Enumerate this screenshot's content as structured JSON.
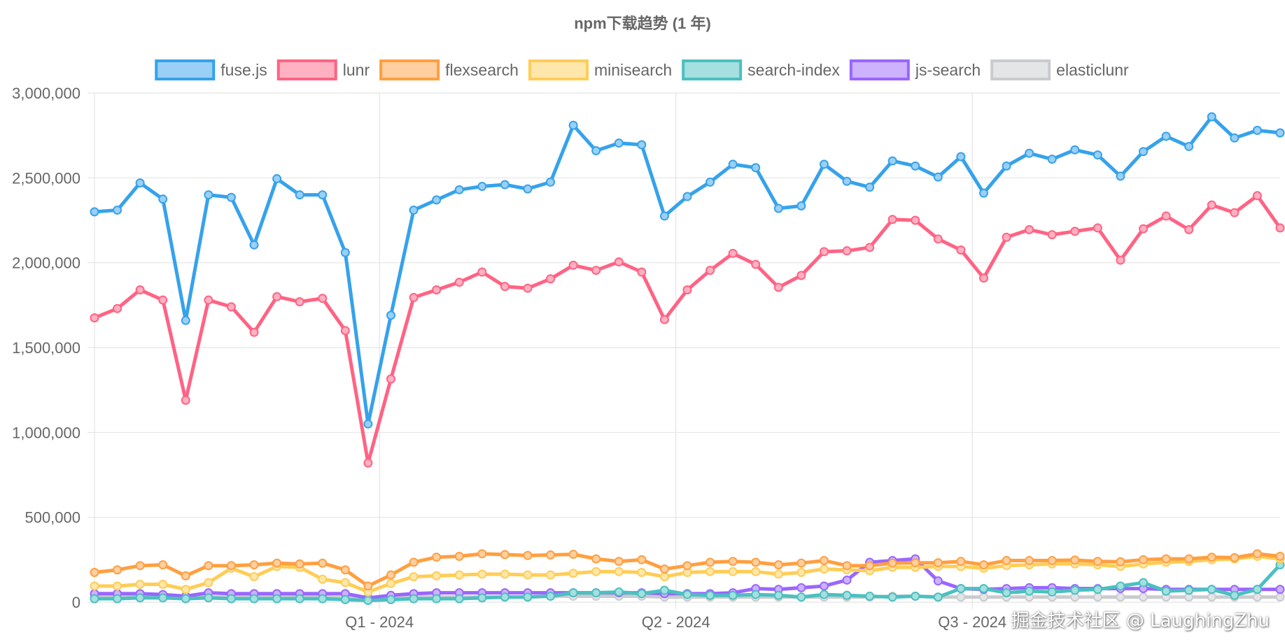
{
  "chart_data": {
    "type": "line",
    "title": "npm下载趋势 (1 年)",
    "xlabel": "",
    "ylabel": "",
    "ylim": [
      0,
      3000000
    ],
    "y_ticks": [
      0,
      500000,
      1000000,
      1500000,
      2000000,
      2500000,
      3000000
    ],
    "y_tick_labels": [
      "0",
      "500,000",
      "1,000,000",
      "1,500,000",
      "2,000,000",
      "2,500,000",
      "3,000,000"
    ],
    "x_ticks": [
      {
        "index": 12.5,
        "label": "Q1 - 2024"
      },
      {
        "index": 25.5,
        "label": "Q2 - 2024"
      },
      {
        "index": 38.5,
        "label": "Q3 - 2024"
      }
    ],
    "legend_position": "top",
    "grid": true,
    "series": [
      {
        "name": "fuse.js",
        "color": "#36a2eb",
        "fill": "#9ad0f5",
        "values": [
          2300000,
          2310000,
          2470000,
          2375000,
          1660000,
          2400000,
          2385000,
          2105000,
          2495000,
          2400000,
          2400000,
          2060000,
          1050000,
          1690000,
          2310000,
          2370000,
          2430000,
          2450000,
          2460000,
          2435000,
          2475000,
          2810000,
          2660000,
          2705000,
          2695000,
          2275000,
          2390000,
          2475000,
          2580000,
          2560000,
          2320000,
          2335000,
          2580000,
          2480000,
          2445000,
          2600000,
          2570000,
          2505000,
          2625000,
          2410000,
          2570000,
          2645000,
          2610000,
          2665000,
          2635000,
          2510000,
          2655000,
          2745000,
          2685000,
          2860000,
          2735000,
          2780000,
          2765000
        ]
      },
      {
        "name": "lunr",
        "color": "#ff6384",
        "fill": "#ffb1c1",
        "values": [
          1675000,
          1730000,
          1840000,
          1780000,
          1190000,
          1780000,
          1740000,
          1590000,
          1800000,
          1770000,
          1790000,
          1600000,
          820000,
          1315000,
          1795000,
          1840000,
          1885000,
          1945000,
          1860000,
          1850000,
          1905000,
          1985000,
          1955000,
          2005000,
          1945000,
          1665000,
          1840000,
          1955000,
          2055000,
          1990000,
          1855000,
          1925000,
          2065000,
          2070000,
          2090000,
          2255000,
          2250000,
          2140000,
          2075000,
          1910000,
          2150000,
          2195000,
          2165000,
          2185000,
          2205000,
          2015000,
          2200000,
          2275000,
          2195000,
          2340000,
          2295000,
          2395000,
          2205000
        ]
      },
      {
        "name": "flexsearch",
        "color": "#ff9f40",
        "fill": "#ffcf9f",
        "values": [
          175000,
          190000,
          215000,
          220000,
          155000,
          215000,
          215000,
          220000,
          230000,
          225000,
          230000,
          190000,
          95000,
          160000,
          235000,
          265000,
          270000,
          285000,
          280000,
          275000,
          278000,
          282000,
          255000,
          240000,
          250000,
          195000,
          215000,
          235000,
          240000,
          235000,
          220000,
          230000,
          245000,
          215000,
          215000,
          230000,
          232000,
          232000,
          240000,
          220000,
          245000,
          245000,
          245000,
          248000,
          240000,
          238000,
          250000,
          255000,
          255000,
          265000,
          262000,
          285000,
          270000
        ]
      },
      {
        "name": "minisearch",
        "color": "#ffcd56",
        "fill": "#ffe6aa",
        "values": [
          95000,
          95000,
          105000,
          105000,
          75000,
          115000,
          200000,
          150000,
          210000,
          205000,
          135000,
          115000,
          60000,
          110000,
          150000,
          155000,
          160000,
          165000,
          165000,
          160000,
          160000,
          170000,
          180000,
          180000,
          175000,
          150000,
          175000,
          180000,
          180000,
          180000,
          165000,
          175000,
          195000,
          190000,
          185000,
          205000,
          205000,
          210000,
          210000,
          200000,
          215000,
          220000,
          225000,
          225000,
          220000,
          210000,
          225000,
          235000,
          240000,
          250000,
          255000,
          270000,
          255000
        ]
      },
      {
        "name": "search-index",
        "color": "#4bc0c0",
        "fill": "#a5dfdf",
        "values": [
          20000,
          20000,
          25000,
          25000,
          20000,
          25000,
          20000,
          20000,
          20000,
          20000,
          20000,
          15000,
          10000,
          15000,
          20000,
          20000,
          20000,
          25000,
          30000,
          30000,
          35000,
          55000,
          55000,
          60000,
          50000,
          70000,
          45000,
          40000,
          40000,
          45000,
          40000,
          30000,
          45000,
          40000,
          35000,
          30000,
          35000,
          30000,
          80000,
          80000,
          55000,
          65000,
          60000,
          70000,
          75000,
          95000,
          115000,
          65000,
          70000,
          75000,
          40000,
          75000,
          220000
        ]
      },
      {
        "name": "js-search",
        "color": "#9966ff",
        "fill": "#ccb2ff",
        "values": [
          50000,
          50000,
          50000,
          45000,
          35000,
          55000,
          50000,
          50000,
          50000,
          50000,
          50000,
          50000,
          25000,
          40000,
          50000,
          55000,
          55000,
          55000,
          55000,
          55000,
          55000,
          55000,
          55000,
          55000,
          55000,
          50000,
          50000,
          50000,
          55000,
          80000,
          75000,
          85000,
          95000,
          130000,
          235000,
          245000,
          255000,
          125000,
          80000,
          75000,
          80000,
          85000,
          85000,
          80000,
          80000,
          80000,
          80000,
          75000,
          75000,
          75000,
          75000,
          75000,
          75000
        ]
      },
      {
        "name": "elasticlunr",
        "color": "#c9cbcf",
        "fill": "#e4e5e7",
        "values": [
          30000,
          30000,
          30000,
          30000,
          25000,
          30000,
          30000,
          30000,
          30000,
          30000,
          30000,
          25000,
          15000,
          20000,
          30000,
          30000,
          30000,
          30000,
          30000,
          30000,
          35000,
          35000,
          35000,
          35000,
          35000,
          30000,
          30000,
          30000,
          30000,
          30000,
          30000,
          30000,
          30000,
          30000,
          30000,
          35000,
          35000,
          30000,
          30000,
          30000,
          30000,
          30000,
          30000,
          30000,
          30000,
          30000,
          30000,
          30000,
          30000,
          30000,
          30000,
          30000,
          30000
        ]
      }
    ]
  },
  "watermark": "掘金技术社区 @ LaughingZhu"
}
